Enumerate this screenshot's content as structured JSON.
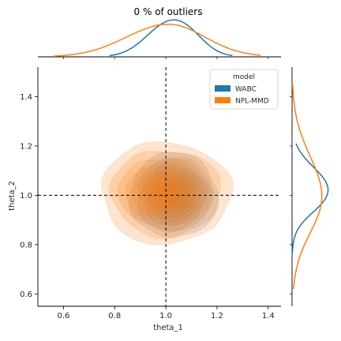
{
  "chart_data": {
    "type": "kde-jointplot",
    "title": "0 % of outliers",
    "xlabel": "theta_1",
    "ylabel": "theta_2",
    "xlim": [
      0.5,
      1.45
    ],
    "ylim": [
      0.55,
      1.52
    ],
    "x_ticks": [
      "0.6",
      "0.8",
      "1.0",
      "1.2",
      "1.4"
    ],
    "y_ticks": [
      "0.6",
      "0.8",
      "1.0",
      "1.2",
      "1.4"
    ],
    "reference_lines": {
      "x": 1.0,
      "y": 1.0
    },
    "legend": {
      "title": "model",
      "placement": "top-right"
    },
    "series": [
      {
        "name": "WABC",
        "color": "#1f77b4",
        "center": [
          1.03,
          1.0
        ],
        "spread": [
          0.075,
          0.075
        ],
        "marginal_x": {
          "range": [
            0.78,
            1.26
          ],
          "peak": 1.02
        },
        "marginal_y": {
          "range": [
            0.76,
            1.21
          ],
          "peak": 1.03
        }
      },
      {
        "name": "NPL-MMD",
        "color": "#ff7f0e",
        "center": [
          1.0,
          1.01
        ],
        "spread": [
          0.11,
          0.09
        ],
        "marginal_x": {
          "range": [
            0.56,
            1.37
          ],
          "peak": 0.99
        },
        "marginal_y": {
          "range": [
            0.62,
            1.45
          ],
          "peak": 1.01
        }
      }
    ]
  }
}
